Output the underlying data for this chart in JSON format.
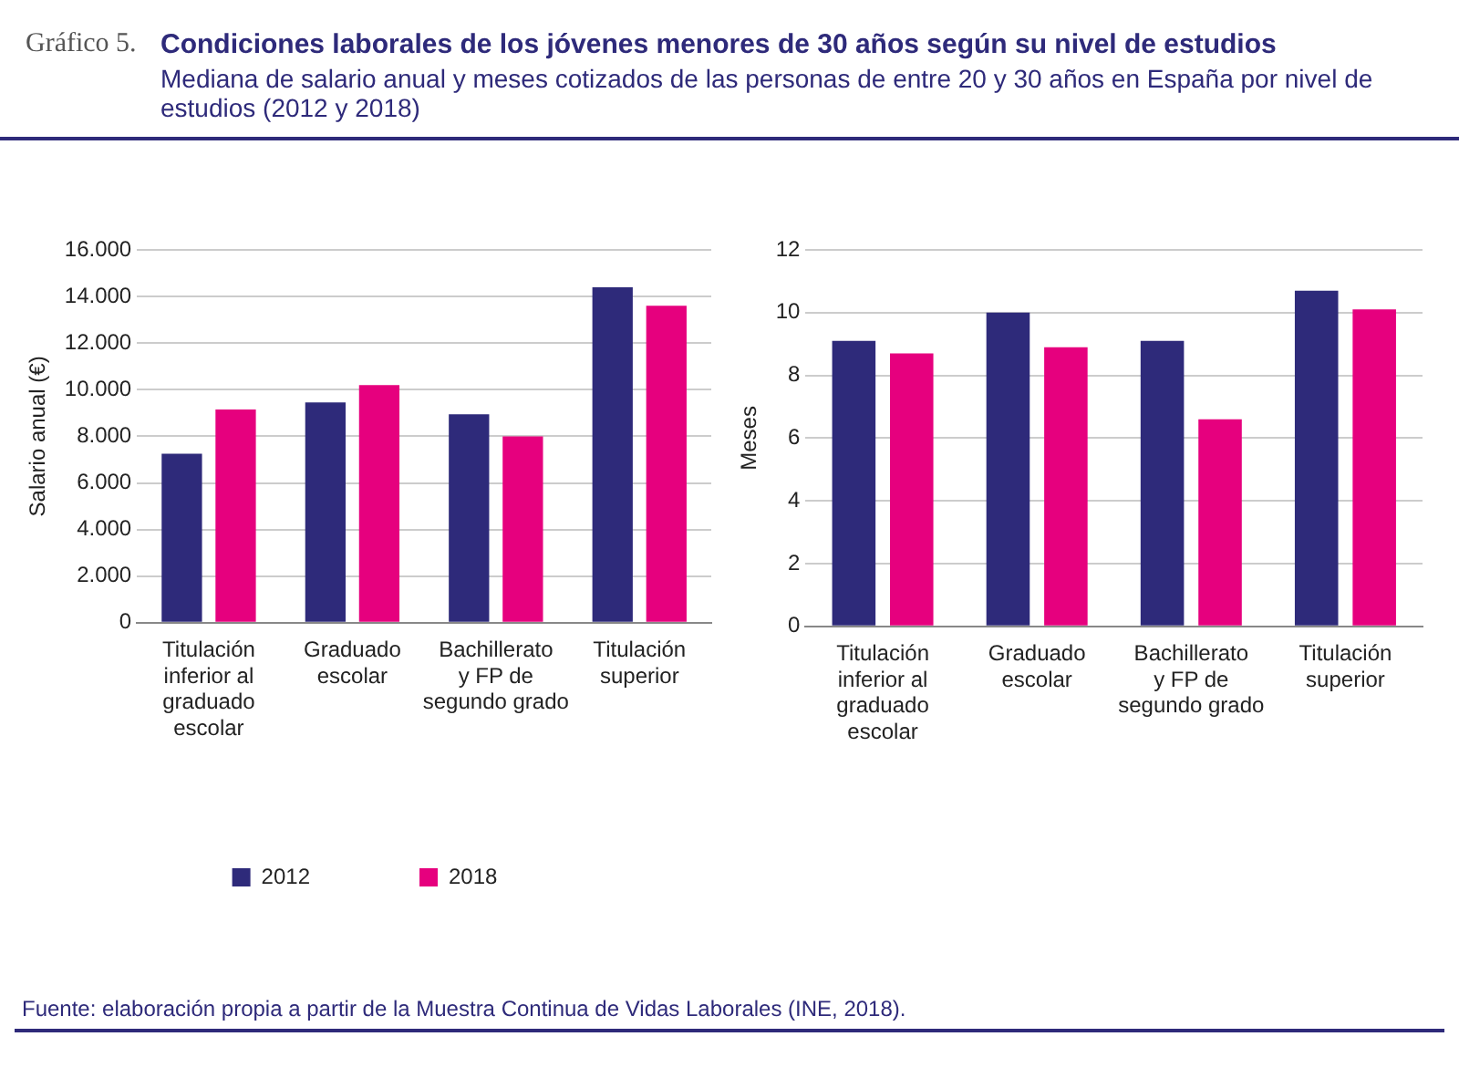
{
  "chart_data": [
    {
      "type": "bar",
      "title": "Condiciones laborales de los jóvenes menores de 30 años según su nivel de estudios",
      "subtitle": "Mediana de salario anual y meses cotizados de las personas de entre 20 y 30 años en España por nivel de estudios (2012 y 2018)",
      "ylabel": "Salario anual (€)",
      "annotations": [
        "Gráfico 5.",
        "Fuente: elaboración propia a partir de la Muestra Continua de Vidas Laborales (INE, 2018)."
      ],
      "categories": [
        "Titulación inferior al graduado escolar",
        "Graduado escolar",
        "Bachillerato y FP de segundo grado",
        "Titulación superior"
      ],
      "series": [
        {
          "name": "2012",
          "color": "#2e2a7a",
          "values": [
            7250,
            9450,
            8950,
            14400
          ]
        },
        {
          "name": "2018",
          "color": "#e6007e",
          "values": [
            9150,
            10200,
            8000,
            13600
          ]
        }
      ],
      "ylim": [
        0,
        16000
      ],
      "yticks": [
        0,
        {
          "value": 2000,
          "label": "2.000"
        },
        {
          "value": 4000,
          "label": "4.000"
        },
        {
          "value": 6000,
          "label": "6.000"
        },
        {
          "value": 8000,
          "label": "8.000"
        },
        {
          "value": 10000,
          "label": "10.000"
        },
        {
          "value": 12000,
          "label": "12.000"
        },
        {
          "value": 14000,
          "label": "14.000"
        },
        {
          "value": 16000,
          "label": "16.000"
        }
      ],
      "grid": "y",
      "legend": "bottom"
    },
    {
      "type": "bar",
      "ylabel": "Meses",
      "categories": [
        "Titulación inferior al graduado escolar",
        "Graduado escolar",
        "Bachillerato y FP de segundo grado",
        "Titulación superior"
      ],
      "series": [
        {
          "name": "2012",
          "color": "#2e2a7a",
          "values": [
            9.1,
            10.0,
            9.1,
            10.7
          ]
        },
        {
          "name": "2018",
          "color": "#e6007e",
          "values": [
            8.7,
            8.9,
            6.6,
            10.1
          ]
        }
      ],
      "ylim": [
        0,
        12
      ],
      "yticks": [
        0,
        2,
        4,
        6,
        8,
        10,
        12
      ],
      "grid": "y",
      "legend": "bottom"
    }
  ]
}
